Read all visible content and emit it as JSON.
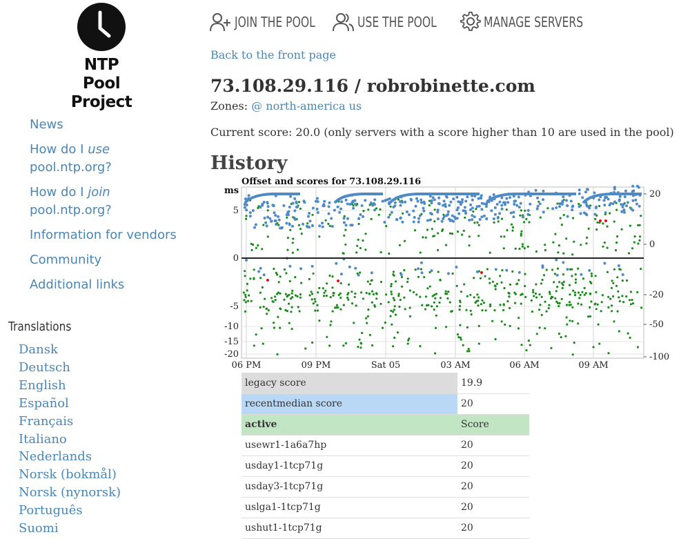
{
  "logo": {
    "line1": "NTP Pool",
    "line2": "Project"
  },
  "topnav": {
    "join": "JOIN THE POOL",
    "use": "USE THE POOL",
    "manage": "MANAGE SERVERS"
  },
  "sidebar": {
    "news": "News",
    "use_pre": "How do I ",
    "use_em": "use",
    "use_post": "pool.ntp.org?",
    "join_pre": "How do I ",
    "join_em": "join",
    "join_post": "pool.ntp.org?",
    "vendors": "Information for vendors",
    "community": "Community",
    "additional": "Additional links"
  },
  "translations": {
    "title": "Translations",
    "langs": [
      "Dansk",
      "Deutsch",
      "English",
      "Español",
      "Français",
      "Italiano",
      "Nederlands",
      "Norsk (bokmål)",
      "Norsk (nynorsk)",
      "Português",
      "Suomi"
    ]
  },
  "main": {
    "back": "Back to the front page",
    "title": "73.108.29.116 / robrobinette.com",
    "zones_label": "Zones:",
    "zones_value": "@ north-america us",
    "score_text": "Current score: 20.0 (only servers with a score higher than 10 are used in the pool)",
    "history": "History"
  },
  "chart_data": {
    "type": "scatter",
    "title": "Offset and scores for 73.108.29.116",
    "ylabel": "ms",
    "left_ticks": [
      "5",
      "0",
      "-5",
      "-10",
      "-15",
      "-20"
    ],
    "right_ticks": [
      "20",
      "0",
      "-20",
      "-50",
      "-100"
    ],
    "x_ticks": [
      "06 PM",
      "09 PM",
      "Sat 05",
      "03 AM",
      "06 AM",
      "09 AM"
    ],
    "colors": {
      "offset": "#1b8a1b",
      "score": "#4f8ac4",
      "error": "#e01010",
      "zero_line": "#222"
    }
  },
  "table": {
    "legacy": {
      "name": "legacy score",
      "value": "19.9"
    },
    "recent": {
      "name": "recentmedian score",
      "value": "20"
    },
    "header": {
      "name": "active",
      "value": "Score"
    },
    "rows": [
      {
        "name": "usewr1-1a6a7hp",
        "value": "20"
      },
      {
        "name": "usday1-1tcp71g",
        "value": "20"
      },
      {
        "name": "usday3-1tcp71g",
        "value": "20"
      },
      {
        "name": "uslga1-1tcp71g",
        "value": "20"
      },
      {
        "name": "ushut1-1tcp71g",
        "value": "20"
      }
    ]
  }
}
